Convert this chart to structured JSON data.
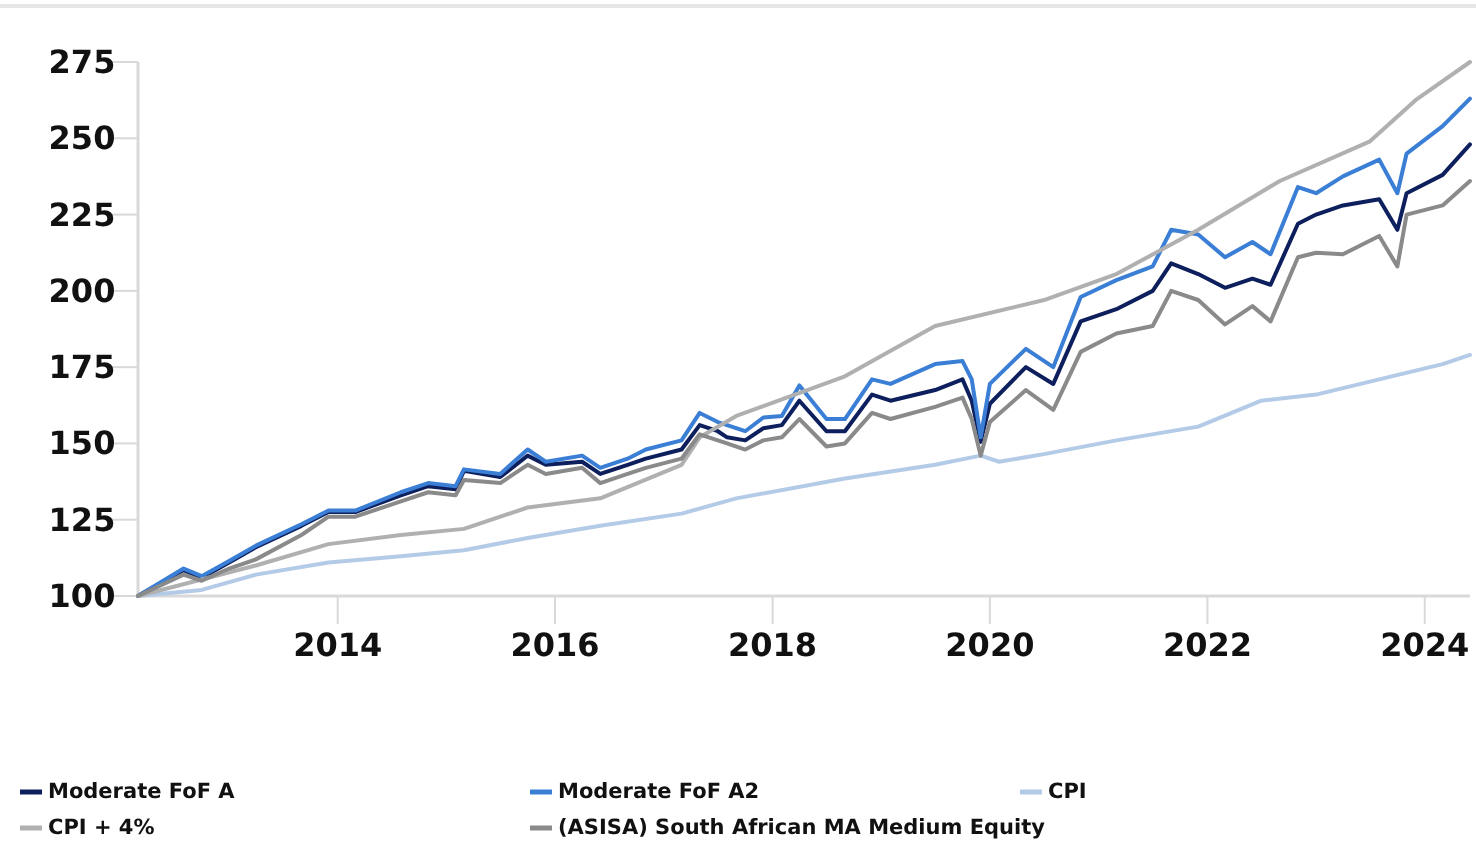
{
  "chart_data": {
    "type": "line",
    "legend": "bottom",
    "grid": false,
    "x": [
      "2012-03",
      "2012-08",
      "2012-10",
      "2013-01",
      "2013-04",
      "2013-09",
      "2013-12",
      "2014-03",
      "2014-08",
      "2014-11",
      "2015-02",
      "2015-03",
      "2015-07",
      "2015-10",
      "2015-12",
      "2016-04",
      "2016-06",
      "2016-09",
      "2016-11",
      "2017-03",
      "2017-05",
      "2017-07",
      "2017-08",
      "2017-10",
      "2017-12",
      "2018-02",
      "2018-04",
      "2018-07",
      "2018-09",
      "2018-12",
      "2019-02",
      "2019-07",
      "2019-10",
      "2019-11",
      "2019-12",
      "2020-01",
      "2020-05",
      "2020-08",
      "2020-11",
      "2021-03",
      "2021-07",
      "2021-09",
      "2021-12",
      "2022-03",
      "2022-06",
      "2022-08",
      "2022-11",
      "2023-01",
      "2023-04",
      "2023-08",
      "2023-10",
      "2023-11",
      "2024-03",
      "2024-06"
    ],
    "xlim": [
      "2012-03",
      "2024-06"
    ],
    "xticks": [
      {
        "value": "2014-01",
        "label": "2014"
      },
      {
        "value": "2016-01",
        "label": "2016"
      },
      {
        "value": "2018-01",
        "label": "2018"
      },
      {
        "value": "2020-01",
        "label": "2020"
      },
      {
        "value": "2022-01",
        "label": "2022"
      },
      {
        "value": "2024-01",
        "label": "2024"
      }
    ],
    "ylim": [
      100,
      275
    ],
    "yticks": [
      100,
      125,
      150,
      175,
      200,
      225,
      250,
      275
    ],
    "series": [
      {
        "name": "Moderate FoF A",
        "color": "#0d1f5c",
        "values": [
          100,
          108.5,
          106,
          111,
          116,
          123,
          127.5,
          127.5,
          133,
          136,
          135,
          141,
          139,
          146,
          143,
          144,
          140,
          143,
          145,
          148,
          156,
          154,
          152,
          151,
          155,
          156,
          164,
          154,
          154,
          166,
          164,
          167.5,
          171,
          164,
          150.5,
          163,
          175,
          169.5,
          190,
          194,
          200,
          209,
          205.5,
          201,
          204,
          202,
          222,
          225,
          228,
          230,
          220,
          232,
          238,
          248
        ]
      },
      {
        "name": "Moderate FoF A2",
        "color": "#3a7fd5",
        "values": [
          100,
          109,
          106.5,
          111.5,
          116.5,
          123.5,
          128,
          128,
          134,
          137,
          136,
          141.5,
          140,
          148,
          144,
          146,
          142,
          145,
          148,
          151,
          160,
          157,
          156,
          154,
          158.5,
          159,
          169,
          158,
          158,
          171,
          169.5,
          176,
          177,
          171,
          152,
          169.5,
          181,
          175,
          198,
          203.5,
          208,
          220,
          218.5,
          211,
          216,
          212,
          234,
          232,
          237.5,
          243,
          232,
          245,
          254,
          263
        ]
      },
      {
        "name": "CPI",
        "color": "#b4cbe8",
        "x": [
          "2012-03",
          "2012-10",
          "2013-04",
          "2013-12",
          "2014-08",
          "2015-03",
          "2015-10",
          "2016-06",
          "2017-03",
          "2017-09",
          "2018-09",
          "2019-07",
          "2019-12",
          "2020-02",
          "2020-07",
          "2021-03",
          "2021-12",
          "2022-07",
          "2023-01",
          "2023-08",
          "2024-03",
          "2024-06"
        ],
        "values": [
          100,
          102,
          107,
          111,
          113,
          115,
          119,
          123,
          127,
          132,
          138.5,
          143,
          146,
          144,
          146.5,
          151,
          155.5,
          164,
          166,
          171,
          176,
          179
        ]
      },
      {
        "name": "CPI + 4%",
        "color": "#b0b0b0",
        "x": [
          "2012-03",
          "2013-04",
          "2013-12",
          "2014-08",
          "2015-03",
          "2015-10",
          "2016-06",
          "2017-03",
          "2017-05",
          "2017-09",
          "2018-09",
          "2019-07",
          "2020-07",
          "2021-03",
          "2021-12",
          "2022-09",
          "2023-07",
          "2023-12",
          "2024-06"
        ],
        "values": [
          100,
          110,
          117,
          120,
          122,
          129,
          132,
          143,
          152,
          159,
          172,
          188.5,
          197,
          205.5,
          220,
          236,
          249,
          262.5,
          275
        ]
      },
      {
        "name": "(ASISA) South African MA Medium Equity",
        "color": "#8a8a8a",
        "values": [
          100,
          107,
          105,
          109,
          112,
          120,
          126,
          126,
          131,
          134,
          133,
          138,
          137,
          143,
          140,
          142,
          137,
          140,
          142,
          145,
          153,
          151,
          150,
          148,
          151,
          152,
          158,
          149,
          150,
          160,
          158,
          162,
          165,
          158,
          146,
          157,
          167.5,
          161,
          180,
          186,
          188.5,
          200,
          197,
          189,
          195,
          190,
          211,
          212.5,
          212,
          218,
          208,
          225,
          228,
          236
        ]
      }
    ]
  }
}
